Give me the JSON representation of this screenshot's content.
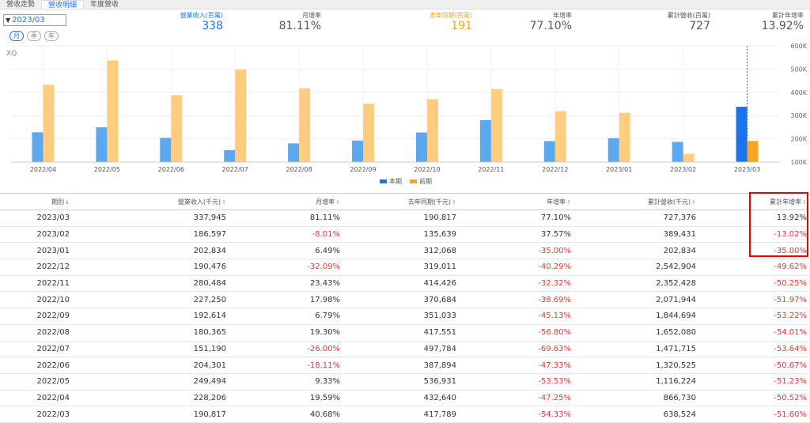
{
  "tabs": [
    {
      "label": "營收走勢",
      "active": false
    },
    {
      "label": "營收明細",
      "active": true
    },
    {
      "label": "年度營收",
      "active": false
    }
  ],
  "month_select": {
    "value": "2023/03"
  },
  "period_buttons": [
    {
      "label": "月",
      "active": true
    },
    {
      "label": "季",
      "active": false
    },
    {
      "label": "年",
      "active": false
    }
  ],
  "summary": [
    {
      "label": "營業收入(百萬)",
      "value": "338",
      "color": "#1a73e8"
    },
    {
      "label": "月增率",
      "value": "81.11%",
      "color": "#555555"
    },
    {
      "label": "去年同期(百萬)",
      "value": "191",
      "color": "#f5a623"
    },
    {
      "label": "年增率",
      "value": "77.10%",
      "color": "#555555"
    },
    {
      "label": "累計營收(百萬)",
      "value": "727",
      "color": "#555555"
    },
    {
      "label": "累計年增率",
      "value": "13.92%",
      "color": "#555555"
    }
  ],
  "watermark": "XQ",
  "colors": {
    "current": "#5aa9f0",
    "current_highlight": "#1a73e8",
    "previous": "#ffcc80",
    "previous_highlight": "#f5a623",
    "negative": "#e53935"
  },
  "chart_data": {
    "type": "bar",
    "categories": [
      "2022/04",
      "2022/05",
      "2022/06",
      "2022/07",
      "2022/08",
      "2022/09",
      "2022/10",
      "2022/11",
      "2022/12",
      "2023/01",
      "2023/02",
      "2023/03"
    ],
    "series": [
      {
        "name": "本期",
        "values": [
          228206,
          249494,
          204301,
          151190,
          180365,
          192614,
          227250,
          280484,
          190476,
          202834,
          186597,
          337945
        ]
      },
      {
        "name": "前期",
        "values": [
          432640,
          536931,
          387894,
          497784,
          417551,
          351033,
          370684,
          414426,
          319011,
          312068,
          135639,
          190817
        ]
      }
    ],
    "y_ticks": [
      "100K",
      "200K",
      "300K",
      "400K",
      "500K",
      "600K"
    ],
    "ylim": [
      100000,
      600000
    ],
    "highlight_category": "2023/03"
  },
  "table": {
    "headers": [
      "期別",
      "營業收入(千元)",
      "月增率",
      "去年同期(千元)",
      "年增率",
      "累計營收(千元)",
      "累計年增率"
    ],
    "rows": [
      [
        "2023/03",
        "337,945",
        "81.11%",
        "190,817",
        "77.10%",
        "727,376",
        "13.92%"
      ],
      [
        "2023/02",
        "186,597",
        "-8.01%",
        "135,639",
        "37.57%",
        "389,431",
        "-13.02%"
      ],
      [
        "2023/01",
        "202,834",
        "6.49%",
        "312,068",
        "-35.00%",
        "202,834",
        "-35.00%"
      ],
      [
        "2022/12",
        "190,476",
        "-32.09%",
        "319,011",
        "-40.29%",
        "2,542,904",
        "-49.62%"
      ],
      [
        "2022/11",
        "280,484",
        "23.43%",
        "414,426",
        "-32.32%",
        "2,352,428",
        "-50.25%"
      ],
      [
        "2022/10",
        "227,250",
        "17.98%",
        "370,684",
        "-38.69%",
        "2,071,944",
        "-51.97%"
      ],
      [
        "2022/09",
        "192,614",
        "6.79%",
        "351,033",
        "-45.13%",
        "1,844,694",
        "-53.22%"
      ],
      [
        "2022/08",
        "180,365",
        "19.30%",
        "417,551",
        "-56.80%",
        "1,652,080",
        "-54.01%"
      ],
      [
        "2022/07",
        "151,190",
        "-26.00%",
        "497,784",
        "-69.63%",
        "1,471,715",
        "-53.64%"
      ],
      [
        "2022/06",
        "204,301",
        "-18.11%",
        "387,894",
        "-47.33%",
        "1,320,525",
        "-50.67%"
      ],
      [
        "2022/05",
        "249,494",
        "9.33%",
        "536,931",
        "-53.53%",
        "1,116,224",
        "-51.23%"
      ],
      [
        "2022/04",
        "228,206",
        "19.59%",
        "432,640",
        "-47.25%",
        "866,730",
        "-50.52%"
      ],
      [
        "2022/03",
        "190,817",
        "40.68%",
        "417,789",
        "-54.33%",
        "638,524",
        "-51.60%"
      ]
    ]
  }
}
